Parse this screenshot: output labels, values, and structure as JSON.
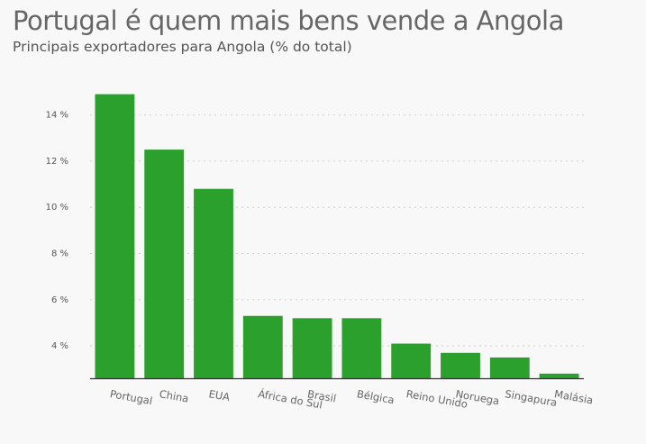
{
  "header": {
    "title": "Portugal é quem mais bens vende a Angola",
    "subtitle": "Principais exportadores para Angola (% do total)"
  },
  "colors": {
    "bar": "#2ca02c",
    "grid": "#d0d0d0",
    "axis": "#333333",
    "tick_text": "#555555",
    "category_text": "#666666"
  },
  "chart_data": {
    "type": "bar",
    "title": "Portugal é quem mais bens vende a Angola",
    "subtitle": "Principais exportadores para Angola (% do total)",
    "xlabel": "",
    "ylabel": "",
    "unit": "%",
    "categories": [
      "Portugal",
      "China",
      "EUA",
      "África do Sul",
      "Brasil",
      "Bélgica",
      "Reino Unido",
      "Noruega",
      "Singapura",
      "Malásia"
    ],
    "values": [
      14.9,
      12.5,
      10.8,
      5.3,
      5.2,
      5.2,
      4.1,
      3.7,
      3.5,
      2.8
    ],
    "ylim": [
      2.6,
      15
    ],
    "yticks": [
      4,
      6,
      8,
      10,
      12,
      14
    ],
    "ytick_labels": [
      "4 %",
      "6 %",
      "8 %",
      "10 %",
      "12 %",
      "14 %"
    ],
    "grid": true,
    "legend": "none"
  }
}
